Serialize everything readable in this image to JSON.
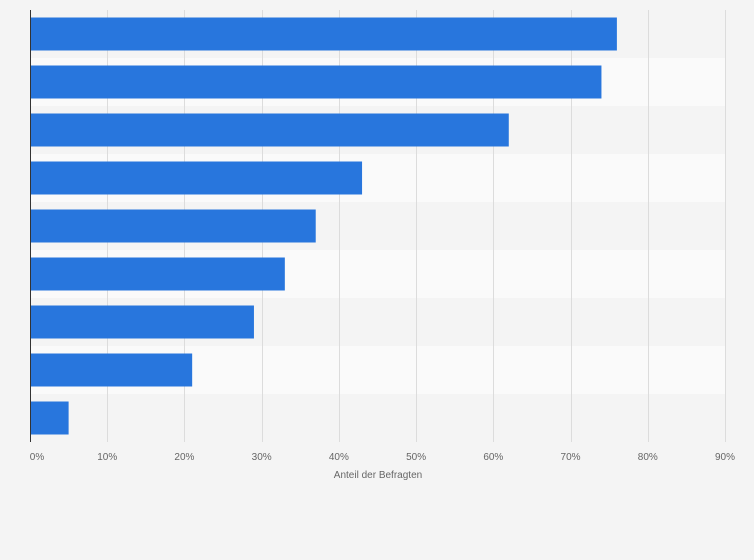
{
  "chart_data": {
    "type": "bar",
    "orientation": "horizontal",
    "title": "",
    "xlabel": "Anteil der Befragten",
    "ylabel": "",
    "xlim": [
      0,
      90
    ],
    "x_ticks": [
      0,
      10,
      20,
      30,
      40,
      50,
      60,
      70,
      80,
      90
    ],
    "x_tick_labels": [
      "0%",
      "10%",
      "20%",
      "30%",
      "40%",
      "50%",
      "60%",
      "70%",
      "80%",
      "90%"
    ],
    "categories": [
      "",
      "",
      "",
      "",
      "",
      "",
      "",
      "",
      ""
    ],
    "values": [
      76,
      74,
      62,
      43,
      37,
      33,
      29,
      21,
      5
    ],
    "grid": true,
    "bar_color": "#2876dd",
    "band_colors": [
      "#f4f4f4",
      "#fafafa"
    ],
    "grid_color": "#dcdcdc",
    "axis_color": "#333333"
  }
}
